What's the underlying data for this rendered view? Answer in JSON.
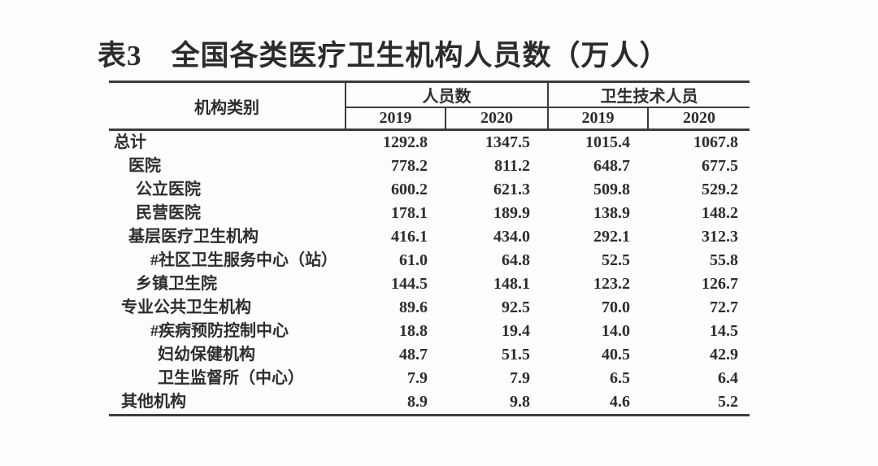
{
  "table": {
    "title": "表3　全国各类医疗卫生机构人员数（万人）",
    "unit_note": "万人",
    "header": {
      "category_label": "机构类别",
      "groups": [
        {
          "label": "人员数",
          "years": [
            "2019",
            "2020"
          ]
        },
        {
          "label": "卫生技术人员",
          "years": [
            "2019",
            "2020"
          ]
        }
      ]
    },
    "rows": [
      {
        "label": "总计",
        "indent": 0,
        "values": [
          "1292.8",
          "1347.5",
          "1015.4",
          "1067.8"
        ]
      },
      {
        "label": "医院",
        "indent": 2,
        "values": [
          "778.2",
          "811.2",
          "648.7",
          "677.5"
        ]
      },
      {
        "label": "公立医院",
        "indent": 3,
        "values": [
          "600.2",
          "621.3",
          "509.8",
          "529.2"
        ]
      },
      {
        "label": "民营医院",
        "indent": 3,
        "values": [
          "178.1",
          "189.9",
          "138.9",
          "148.2"
        ]
      },
      {
        "label": "基层医疗卫生机构",
        "indent": 2,
        "values": [
          "416.1",
          "434.0",
          "292.1",
          "312.3"
        ]
      },
      {
        "label": "#社区卫生服务中心（站）",
        "indent": 5,
        "values": [
          "61.0",
          "64.8",
          "52.5",
          "55.8"
        ]
      },
      {
        "label": "乡镇卫生院",
        "indent": 3,
        "values": [
          "144.5",
          "148.1",
          "123.2",
          "126.7"
        ]
      },
      {
        "label": "专业公共卫生机构",
        "indent": 1,
        "values": [
          "89.6",
          "92.5",
          "70.0",
          "72.7"
        ]
      },
      {
        "label": "#疾病预防控制中心",
        "indent": 5,
        "values": [
          "18.8",
          "19.4",
          "14.0",
          "14.5"
        ]
      },
      {
        "label": "妇幼保健机构",
        "indent": 6,
        "values": [
          "48.7",
          "51.5",
          "40.5",
          "42.9"
        ]
      },
      {
        "label": "卫生监督所（中心）",
        "indent": 6,
        "values": [
          "7.9",
          "7.9",
          "6.5",
          "6.4"
        ]
      },
      {
        "label": "其他机构",
        "indent": 1,
        "values": [
          "8.9",
          "9.8",
          "4.6",
          "5.2"
        ]
      }
    ]
  },
  "colors": {
    "text": "#2d2d2d",
    "rule": "#3c3c3c",
    "background": "#fdfdfd"
  }
}
